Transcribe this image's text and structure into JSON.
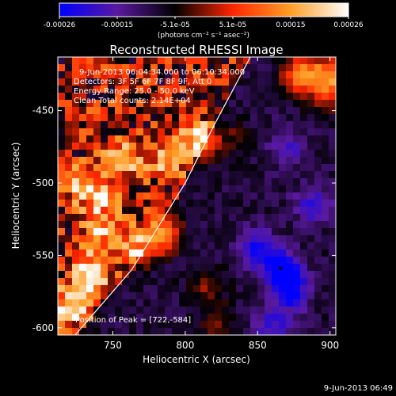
{
  "colorbar": {
    "tick_labels": [
      "-0.00026",
      "-0.00015",
      "-5.1e-05",
      "5.1e-05",
      "0.00015",
      "0.00026"
    ],
    "range": [
      -0.00026,
      0.00026
    ],
    "units_label": "(photons cm⁻² s⁻¹ asec⁻²)",
    "colors": [
      "#0000ff",
      "#5a19a0",
      "#000000",
      "#ff2600",
      "#ff9f26",
      "#ffffff"
    ]
  },
  "footer_date": "9-Jun-2013 06:49",
  "chart_data": {
    "type": "heatmap",
    "title": "Reconstructed RHESSI Image",
    "xlabel": "Heliocentric X (arcsec)",
    "ylabel": "Heliocentric Y (arcsec)",
    "xlim": [
      712,
      904
    ],
    "ylim": [
      -605,
      -413
    ],
    "x_ticks": [
      "750",
      "800",
      "850",
      "900"
    ],
    "x_tick_values": [
      750,
      800,
      850,
      900
    ],
    "y_ticks": [
      "-450",
      "-500",
      "-550",
      "-600"
    ],
    "y_tick_values": [
      -450,
      -500,
      -550,
      -600
    ],
    "annotations": [
      "9-Jun-2013 06:04:34.000 to 06:10:34.000",
      "Detectors: 3F 5F 6F 7F 8F 9F, Att 0",
      "Energy Range: 25.0 - 50.0 keV",
      "Clean    Total counts: 2.14E+04"
    ],
    "peak_label": "Position of Peak = [722,-584]",
    "peak": [
      722,
      -584
    ],
    "limb_curve": [
      [
        724,
        -605
      ],
      [
        763,
        -560
      ],
      [
        800,
        -500
      ],
      [
        820,
        -460
      ],
      [
        845,
        -413
      ]
    ],
    "min_marker": [
      866,
      -559
    ],
    "emission_regions": [
      {
        "x": 810,
        "y": -470,
        "value": 0.00024
      },
      {
        "x": 788,
        "y": -485,
        "value": 0.00017
      },
      {
        "x": 758,
        "y": -482,
        "value": 0.0002
      },
      {
        "x": 726,
        "y": -500,
        "value": 0.00015
      },
      {
        "x": 742,
        "y": -510,
        "value": 0.00018
      },
      {
        "x": 785,
        "y": -535,
        "value": 0.00022
      },
      {
        "x": 768,
        "y": -545,
        "value": 0.00016
      },
      {
        "x": 742,
        "y": -535,
        "value": 0.00017
      },
      {
        "x": 730,
        "y": -558,
        "value": 0.00012
      },
      {
        "x": 722,
        "y": -584,
        "value": 0.00026
      },
      {
        "x": 737,
        "y": -568,
        "value": 0.00016
      },
      {
        "x": 815,
        "y": -572,
        "value": 9e-05
      },
      {
        "x": 835,
        "y": -470,
        "value": 6e-05
      },
      {
        "x": 880,
        "y": -425,
        "value": 0.00022
      },
      {
        "x": 900,
        "y": -425,
        "value": 0.00019
      },
      {
        "x": 898,
        "y": -440,
        "value": 0.00012
      },
      {
        "x": 822,
        "y": -600,
        "value": 8e-05
      },
      {
        "x": 866,
        "y": -559,
        "value": -0.0002
      },
      {
        "x": 873,
        "y": -575,
        "value": -0.00017
      },
      {
        "x": 850,
        "y": -545,
        "value": -0.00014
      },
      {
        "x": 888,
        "y": -515,
        "value": -0.00012
      },
      {
        "x": 870,
        "y": -475,
        "value": -0.0001
      },
      {
        "x": 860,
        "y": -600,
        "value": -0.00012
      }
    ]
  }
}
